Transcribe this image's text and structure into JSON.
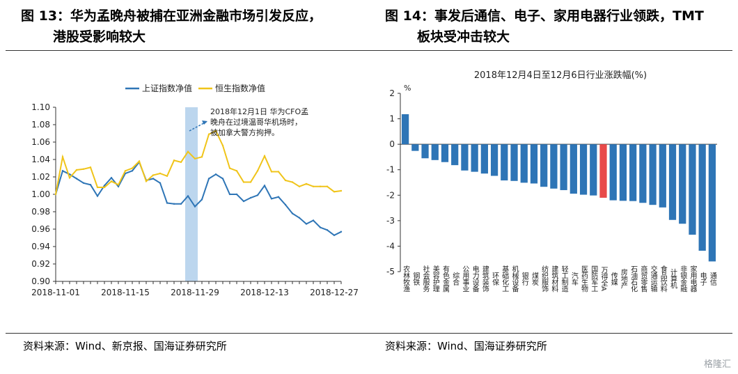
{
  "left_panel": {
    "title_line1": "图 13：华为孟晚舟被捕在亚洲金融市场引发反应，",
    "title_line2": "港股受影响较大",
    "source": "资料来源：Wind、新京报、国海证券研究所"
  },
  "right_panel": {
    "title_line1": "图 14：事发后通信、电子、家用电器行业领跌，TMT",
    "title_line2": "板块受冲击较大",
    "source": "资料来源：Wind、国海证券研究所"
  },
  "watermark": "格隆汇",
  "chart_data": [
    {
      "type": "line",
      "legend_position": "top",
      "grid": false,
      "ylim": [
        0.9,
        1.1
      ],
      "yticks": [
        "0.90",
        "0.92",
        "0.94",
        "0.96",
        "0.98",
        "1.00",
        "1.02",
        "1.04",
        "1.06",
        "1.08",
        "1.10"
      ],
      "xtick_labels": [
        "2018-11-01",
        "2018-11-15",
        "2018-11-29",
        "2018-12-13",
        "2018-12-27"
      ],
      "xtick_index": [
        0,
        10,
        20,
        30,
        40
      ],
      "highlight_range": [
        19,
        20
      ],
      "annotation": [
        "2018年12月1日 华为CFO孟",
        "晚舟在过境温哥华机场时，",
        "被加拿大警方拘押。"
      ],
      "series": [
        {
          "name": "上证指数净值",
          "color": "#2e75b6",
          "values": [
            1.0,
            1.027,
            1.023,
            1.018,
            1.013,
            1.011,
            0.998,
            1.01,
            1.019,
            1.009,
            1.024,
            1.027,
            1.037,
            1.016,
            1.018,
            1.013,
            0.99,
            0.989,
            0.989,
            0.998,
            0.986,
            0.994,
            1.018,
            1.023,
            1.018,
            1.0,
            1.0,
            0.992,
            0.996,
            0.999,
            1.01,
            0.995,
            0.997,
            0.988,
            0.978,
            0.973,
            0.966,
            0.97,
            0.962,
            0.959,
            0.953,
            0.957
          ]
        },
        {
          "name": "恒生指数净值",
          "color": "#f0c419",
          "values": [
            1.0,
            1.043,
            1.019,
            1.028,
            1.029,
            1.031,
            1.008,
            1.008,
            1.015,
            1.011,
            1.027,
            1.03,
            1.038,
            1.015,
            1.022,
            1.024,
            1.021,
            1.039,
            1.037,
            1.049,
            1.041,
            1.043,
            1.069,
            1.073,
            1.056,
            1.03,
            1.027,
            1.014,
            1.014,
            1.027,
            1.044,
            1.026,
            1.026,
            1.016,
            1.014,
            1.009,
            1.012,
            1.009,
            1.009,
            1.009,
            1.003,
            1.004
          ]
        }
      ]
    },
    {
      "type": "bar",
      "title": "2018年12月4日至12月6日行业涨跌幅(%)",
      "ylabel": "%",
      "ylim": [
        -5,
        2
      ],
      "yticks": [
        "-5",
        "-4",
        "-3",
        "-2",
        "-1",
        "0",
        "1",
        "2"
      ],
      "grid": false,
      "bar_color": "#2e75b6",
      "highlight_color": "#e84a4a",
      "highlight_category": "万得全A",
      "categories": [
        "农林牧渔",
        "钢铁",
        "社会服务",
        "美容护理",
        "有色金属",
        "综合",
        "公用事业",
        "电力设备",
        "建筑装饰",
        "环保",
        "基础化工",
        "机械设备",
        "银行",
        "煤炭",
        "纺织服饰",
        "建筑材料",
        "轻工制造",
        "汽车",
        "医药生物",
        "国防军工",
        "万得全A",
        "传媒",
        "房地产",
        "石油石化",
        "商贸零售",
        "交通运输",
        "食品饮料",
        "计算机",
        "非银金融",
        "家用电器",
        "电子",
        "通信"
      ],
      "values": [
        1.18,
        -0.26,
        -0.55,
        -0.62,
        -0.7,
        -0.82,
        -1.03,
        -1.08,
        -1.15,
        -1.24,
        -1.42,
        -1.44,
        -1.51,
        -1.54,
        -1.67,
        -1.74,
        -1.8,
        -1.94,
        -1.98,
        -2.01,
        -2.1,
        -2.2,
        -2.22,
        -2.23,
        -2.3,
        -2.38,
        -2.48,
        -2.97,
        -3.12,
        -3.55,
        -4.18,
        -4.6
      ]
    }
  ]
}
